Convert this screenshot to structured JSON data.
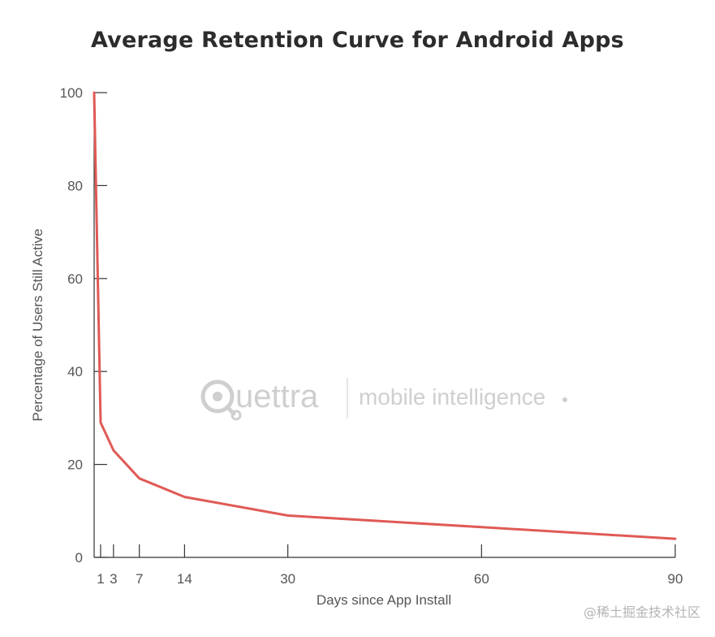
{
  "chart_data": {
    "type": "line",
    "title": "Average Retention Curve for Android Apps",
    "xlabel": "Days since App Install",
    "ylabel": "Percentage of Users Still Active",
    "x_ticks": [
      1,
      3,
      7,
      14,
      30,
      60,
      90
    ],
    "y_ticks": [
      0,
      20,
      40,
      60,
      80,
      100
    ],
    "xlim": [
      0,
      90
    ],
    "ylim": [
      0,
      100
    ],
    "grid": false,
    "colors": {
      "line": "#e05a55",
      "axis": "#333333",
      "watermark": "#cfcfcf"
    },
    "series": [
      {
        "x": [
          0,
          1,
          3,
          7,
          14,
          30,
          60,
          90
        ],
        "y": [
          100,
          29,
          23,
          17,
          13,
          9,
          6.5,
          4
        ]
      }
    ]
  },
  "watermark": {
    "brand": "uettra",
    "brand_icon": "magnifier-q-icon",
    "tagline": "mobile intelligence"
  },
  "footer": "@稀土掘金技术社区"
}
